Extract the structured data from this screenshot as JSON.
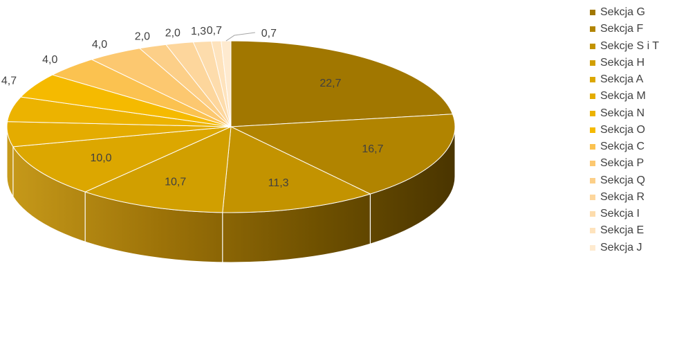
{
  "chart_data": {
    "type": "pie",
    "style": "3d-pie",
    "legend_position": "right",
    "series": [
      {
        "name": "Sekcja G",
        "label": "22,7",
        "value": 22.7,
        "color": "#a17700"
      },
      {
        "name": "Sekcja F",
        "label": "16,7",
        "value": 16.7,
        "color": "#b18400"
      },
      {
        "name": "Sekcje S i T",
        "label": "11,3",
        "value": 11.3,
        "color": "#c39300"
      },
      {
        "name": "Sekcja H",
        "label": "10,7",
        "value": 10.7,
        "color": "#d19f00"
      },
      {
        "name": "Sekcja A",
        "label": "10,0",
        "value": 10.0,
        "color": "#dca700"
      },
      {
        "name": "Sekcja M",
        "label": "4,7",
        "value": 4.7,
        "color": "#e4ac00"
      },
      {
        "name": "Sekcja N",
        "label": "4,7",
        "value": 4.7,
        "color": "#ecb300"
      },
      {
        "name": "Sekcja O",
        "label": "4,7",
        "value": 4.7,
        "color": "#f5ba00"
      },
      {
        "name": "Sekcja C",
        "label": "4,0",
        "value": 4.0,
        "color": "#fbc250"
      },
      {
        "name": "Sekcja P",
        "label": "4,0",
        "value": 4.0,
        "color": "#fcc870"
      },
      {
        "name": "Sekcja Q",
        "label": "2,0",
        "value": 2.0,
        "color": "#fccf88"
      },
      {
        "name": "Sekcja R",
        "label": "2,0",
        "value": 2.0,
        "color": "#fdd69c"
      },
      {
        "name": "Sekcja I",
        "label": "1,3",
        "value": 1.3,
        "color": "#fddcac"
      },
      {
        "name": "Sekcja E",
        "label": "0,7",
        "value": 0.7,
        "color": "#fee3bd"
      },
      {
        "name": "Sekcja J",
        "label": "0,7",
        "value": 0.7,
        "color": "#feeacf"
      }
    ]
  }
}
